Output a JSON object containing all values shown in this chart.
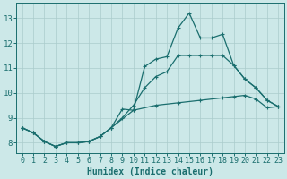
{
  "xlabel": "Humidex (Indice chaleur)",
  "bg_color": "#cce8e8",
  "grid_color": "#aacccc",
  "line_color": "#1a6e6e",
  "xlim": [
    -0.5,
    23.5
  ],
  "ylim": [
    7.6,
    13.6
  ],
  "yticks": [
    8,
    9,
    10,
    11,
    12,
    13
  ],
  "xticks": [
    0,
    1,
    2,
    3,
    4,
    5,
    6,
    7,
    8,
    9,
    10,
    11,
    12,
    13,
    14,
    15,
    16,
    17,
    18,
    19,
    20,
    21,
    22,
    23
  ],
  "line1_x": [
    0,
    1,
    2,
    3,
    4,
    5,
    6,
    7,
    8,
    9,
    10,
    11,
    12,
    13,
    14,
    15,
    16,
    17,
    18,
    19,
    20,
    21,
    22,
    23
  ],
  "line1_y": [
    8.6,
    8.4,
    8.05,
    7.85,
    8.0,
    8.0,
    8.05,
    8.25,
    8.6,
    9.35,
    9.3,
    11.05,
    11.35,
    11.45,
    12.6,
    13.2,
    12.2,
    12.2,
    12.35,
    11.1,
    10.55,
    10.2,
    9.7,
    9.45
  ],
  "line2_x": [
    0,
    1,
    2,
    3,
    4,
    5,
    6,
    7,
    8,
    10,
    12,
    14,
    16,
    18,
    19,
    20,
    21,
    22,
    23
  ],
  "line2_y": [
    8.6,
    8.4,
    8.05,
    7.85,
    8.0,
    8.0,
    8.05,
    8.25,
    8.6,
    9.3,
    9.5,
    9.6,
    9.7,
    9.8,
    9.85,
    9.9,
    9.75,
    9.4,
    9.45
  ],
  "line3_x": [
    0,
    1,
    2,
    3,
    4,
    5,
    6,
    7,
    8,
    9,
    10,
    11,
    12,
    13,
    14,
    15,
    16,
    17,
    18,
    19,
    20,
    21,
    22,
    23
  ],
  "line3_y": [
    8.6,
    8.4,
    8.05,
    7.85,
    8.0,
    8.0,
    8.05,
    8.25,
    8.6,
    9.0,
    9.5,
    10.2,
    10.65,
    10.85,
    11.5,
    11.5,
    11.5,
    11.5,
    11.5,
    11.1,
    10.55,
    10.2,
    9.7,
    9.45
  ],
  "xlabel_fontsize": 7,
  "tick_fontsize": 6,
  "linewidth": 0.9,
  "markersize": 3.5
}
